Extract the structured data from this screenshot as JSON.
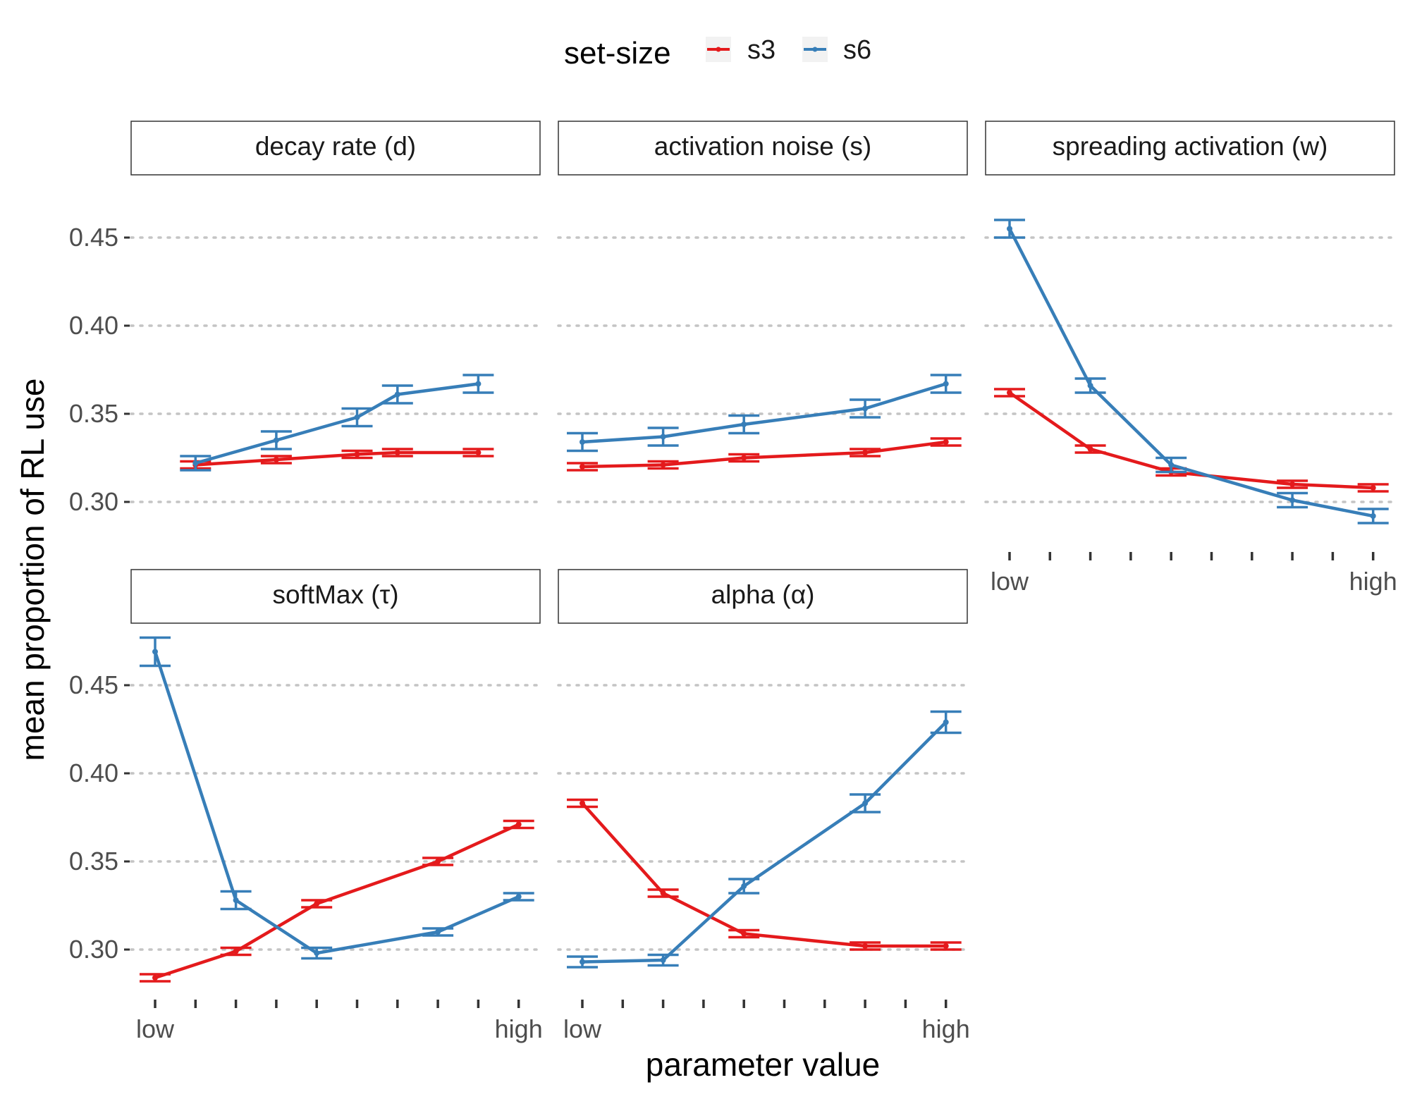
{
  "legend": {
    "title": "set-size",
    "items": [
      {
        "label": "s3",
        "color": "#e41a1c"
      },
      {
        "label": "s6",
        "color": "#377eb8"
      }
    ]
  },
  "axes": {
    "xlabel": "parameter value",
    "ylabel": "mean proportion of RL use"
  },
  "chart_data": {
    "type": "line",
    "facet_titles": [
      "decay rate (d)",
      "activation noise (s)",
      "spreading activation (w)",
      "softMax (τ)",
      "alpha (α)"
    ],
    "y_ticks": [
      "0.30",
      "0.35",
      "0.40",
      "0.45"
    ],
    "y_tick_values": [
      0.3,
      0.35,
      0.4,
      0.45
    ],
    "x_tick_labels": [
      "low",
      "high"
    ],
    "x_tick_count": 10,
    "grid": "horizontal dotted",
    "legend_position": "top",
    "panels": [
      {
        "title": "decay rate (d)",
        "series": [
          {
            "name": "s3",
            "x": [
              2,
              4,
              6,
              7,
              9
            ],
            "y": [
              0.321,
              0.324,
              0.327,
              0.328,
              0.328
            ],
            "err": [
              0.002,
              0.002,
              0.002,
              0.002,
              0.002
            ]
          },
          {
            "name": "s6",
            "x": [
              2,
              4,
              6,
              7,
              9
            ],
            "y": [
              0.322,
              0.335,
              0.348,
              0.361,
              0.367
            ],
            "err": [
              0.004,
              0.005,
              0.005,
              0.005,
              0.005
            ]
          }
        ]
      },
      {
        "title": "activation noise (s)",
        "series": [
          {
            "name": "s3",
            "x": [
              1,
              3,
              5,
              8,
              10
            ],
            "y": [
              0.32,
              0.321,
              0.325,
              0.328,
              0.334
            ],
            "err": [
              0.002,
              0.002,
              0.002,
              0.002,
              0.002
            ]
          },
          {
            "name": "s6",
            "x": [
              1,
              3,
              5,
              8,
              10
            ],
            "y": [
              0.334,
              0.337,
              0.344,
              0.353,
              0.367
            ],
            "err": [
              0.005,
              0.005,
              0.005,
              0.005,
              0.005
            ]
          }
        ]
      },
      {
        "title": "spreading activation (w)",
        "series": [
          {
            "name": "s3",
            "x": [
              1,
              3,
              5,
              8,
              10
            ],
            "y": [
              0.362,
              0.33,
              0.317,
              0.31,
              0.308
            ],
            "err": [
              0.002,
              0.002,
              0.002,
              0.002,
              0.002
            ]
          },
          {
            "name": "s6",
            "x": [
              1,
              3,
              5,
              8,
              10
            ],
            "y": [
              0.455,
              0.366,
              0.321,
              0.301,
              0.292
            ],
            "err": [
              0.005,
              0.004,
              0.004,
              0.004,
              0.004
            ]
          }
        ]
      },
      {
        "title": "softMax (τ)",
        "series": [
          {
            "name": "s3",
            "x": [
              1,
              3,
              5,
              8,
              10
            ],
            "y": [
              0.284,
              0.299,
              0.326,
              0.35,
              0.371
            ],
            "err": [
              0.002,
              0.002,
              0.002,
              0.002,
              0.002
            ]
          },
          {
            "name": "s6",
            "x": [
              1,
              3,
              5,
              8,
              10
            ],
            "y": [
              0.469,
              0.328,
              0.298,
              0.31,
              0.33
            ],
            "err": [
              0.008,
              0.005,
              0.003,
              0.002,
              0.002
            ]
          }
        ]
      },
      {
        "title": "alpha (α)",
        "series": [
          {
            "name": "s3",
            "x": [
              1,
              3,
              5,
              8,
              10
            ],
            "y": [
              0.383,
              0.332,
              0.309,
              0.302,
              0.302
            ],
            "err": [
              0.002,
              0.002,
              0.002,
              0.002,
              0.002
            ]
          },
          {
            "name": "s6",
            "x": [
              1,
              3,
              5,
              8,
              10
            ],
            "y": [
              0.293,
              0.294,
              0.336,
              0.383,
              0.429
            ],
            "err": [
              0.003,
              0.003,
              0.004,
              0.005,
              0.006
            ]
          }
        ]
      }
    ]
  }
}
